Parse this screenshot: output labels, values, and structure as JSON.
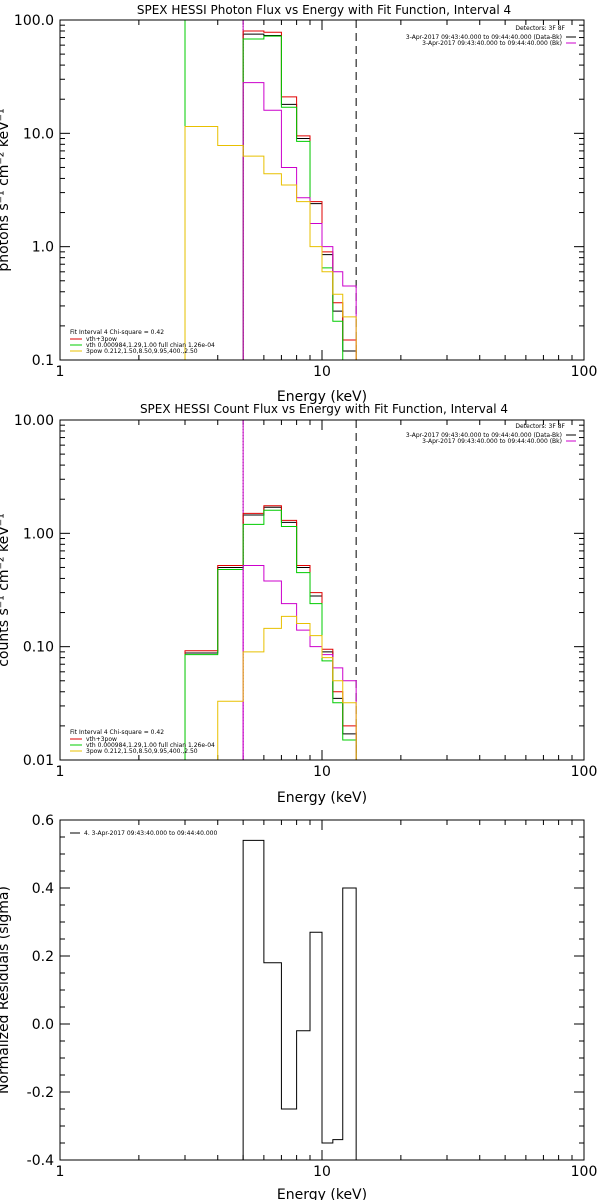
{
  "chart_data": [
    {
      "type": "line",
      "title": "SPEX HESSI Photon Flux vs Energy with Fit Function, Interval 4",
      "xlabel": "Energy (keV)",
      "ylabel": "photons s⁻¹ cm⁻² keV⁻¹",
      "xscale": "log",
      "yscale": "log",
      "xlim": [
        1,
        100
      ],
      "ylim": [
        0.1,
        100
      ],
      "x_ticks": [
        1,
        10,
        100
      ],
      "x_tick_labels": [
        "1",
        "10",
        "100"
      ],
      "y_ticks": [
        0.1,
        1,
        10,
        100
      ],
      "y_tick_labels": [
        "0.1",
        "1.0",
        "10.0",
        "100.0"
      ],
      "info_lines": [
        "Detectors: 3F 8F",
        "3-Apr-2017 09:43:40.000 to 09:44:40.000 (Data-Bk)",
        "3-Apr-2017 09:43:40.000 to 09:44:40.000 (Bk)"
      ],
      "fit_legend_title": "Fit Interval 4   Chi-square = 0.42",
      "fit_legend": [
        {
          "label": "vth+3pow",
          "color": "#e00000"
        },
        {
          "label": "vth 0.000984,1.29,1.00   full chian 1.26e-04",
          "color": "#00cc00"
        },
        {
          "label": "3pow 0.212,1.50,8.50,9.95,400.,2.50",
          "color": "#e8c000"
        }
      ],
      "vlines": [
        {
          "x": 3.0,
          "color": "#00cc00",
          "style": "solid"
        },
        {
          "x": 5.0,
          "color": "#000000",
          "style": "dotted"
        },
        {
          "x": 5.0,
          "color": "#cc00cc",
          "style": "solid"
        },
        {
          "x": 13.5,
          "color": "#000000",
          "style": "dashed"
        }
      ],
      "edges": [
        3.0,
        4.0,
        5.0,
        6.0,
        7.0,
        8.0,
        9.0,
        10.0,
        11.0,
        12.0,
        13.5
      ],
      "series": [
        {
          "color": "#000000",
          "values": [
            null,
            null,
            75,
            73,
            18,
            9.0,
            2.4,
            0.85,
            0.27,
            0.12
          ]
        },
        {
          "color": "#e00000",
          "values": [
            null,
            null,
            80,
            78,
            21,
            9.5,
            2.5,
            0.9,
            0.32,
            0.15
          ]
        },
        {
          "color": "#00cc00",
          "values": [
            null,
            null,
            68,
            72,
            17,
            8.5,
            1.6,
            0.65,
            0.22,
            0.1
          ]
        },
        {
          "color": "#cc00cc",
          "values": [
            null,
            null,
            28,
            16,
            5.0,
            2.7,
            1.6,
            1.0,
            0.6,
            0.45
          ]
        },
        {
          "color": "#e8c000",
          "values": [
            11.5,
            7.8,
            6.3,
            4.4,
            3.5,
            2.5,
            1.0,
            0.6,
            0.38,
            0.24
          ]
        }
      ]
    },
    {
      "type": "line",
      "title": "SPEX HESSI Count Flux vs Energy with Fit Function, Interval 4",
      "xlabel": "Energy (keV)",
      "ylabel": "counts s⁻¹ cm⁻² keV⁻¹",
      "xscale": "log",
      "yscale": "log",
      "xlim": [
        1,
        100
      ],
      "ylim": [
        0.01,
        10
      ],
      "x_ticks": [
        1,
        10,
        100
      ],
      "x_tick_labels": [
        "1",
        "10",
        "100"
      ],
      "y_ticks": [
        0.01,
        0.1,
        1,
        10
      ],
      "y_tick_labels": [
        "0.01",
        "0.10",
        "1.00",
        "10.00"
      ],
      "info_lines": [
        "Detectors: 3F 8F",
        "3-Apr-2017 09:43:40.000 to 09:44:40.000 (Data-Bk)",
        "3-Apr-2017 09:43:40.000 to 09:44:40.000 (Bk)"
      ],
      "fit_legend_title": "Fit Interval 4   Chi-square = 0.42",
      "fit_legend": [
        {
          "label": "vth+3pow",
          "color": "#e00000"
        },
        {
          "label": "vth 0.000984,1.29,1.00   full chian 1.26e-04",
          "color": "#00cc00"
        },
        {
          "label": "3pow 0.212,1.50,8.50,9.95,400.,2.50",
          "color": "#e8c000"
        }
      ],
      "vlines": [
        {
          "x": 5.0,
          "color": "#000000",
          "style": "dotted"
        },
        {
          "x": 5.0,
          "color": "#cc00cc",
          "style": "solid"
        },
        {
          "x": 13.5,
          "color": "#000000",
          "style": "dashed"
        }
      ],
      "edges": [
        3.0,
        4.0,
        5.0,
        6.0,
        7.0,
        8.0,
        9.0,
        10.0,
        11.0,
        12.0,
        13.5
      ],
      "series": [
        {
          "color": "#000000",
          "values": [
            0.088,
            0.5,
            1.45,
            1.7,
            1.25,
            0.5,
            0.28,
            0.09,
            0.035,
            0.017
          ]
        },
        {
          "color": "#e00000",
          "values": [
            0.092,
            0.52,
            1.5,
            1.75,
            1.3,
            0.52,
            0.3,
            0.095,
            0.04,
            0.02
          ]
        },
        {
          "color": "#00cc00",
          "values": [
            0.085,
            0.48,
            1.2,
            1.6,
            1.15,
            0.45,
            0.24,
            0.075,
            0.032,
            0.015
          ]
        },
        {
          "color": "#cc00cc",
          "values": [
            null,
            null,
            0.52,
            0.38,
            0.24,
            0.14,
            0.1,
            0.085,
            0.065,
            0.05
          ]
        },
        {
          "color": "#e8c000",
          "values": [
            null,
            0.033,
            0.09,
            0.145,
            0.185,
            0.16,
            0.125,
            0.08,
            0.05,
            0.032
          ]
        }
      ]
    },
    {
      "type": "line",
      "title": "",
      "xlabel": "Energy (keV)",
      "ylabel": "Normalized Residuals (sigma)",
      "xscale": "log",
      "yscale": "linear",
      "xlim": [
        1,
        100
      ],
      "ylim": [
        -0.4,
        0.6
      ],
      "x_ticks": [
        1,
        10,
        100
      ],
      "x_tick_labels": [
        "1",
        "10",
        "100"
      ],
      "y_ticks": [
        -0.4,
        -0.2,
        0.0,
        0.2,
        0.4,
        0.6
      ],
      "y_tick_labels": [
        "-0.4",
        "-0.2",
        "0.0",
        "0.2",
        "0.4",
        "0.6"
      ],
      "legend": "4. 3-Apr-2017 09:43:40.000 to 09:44:40.000",
      "edges": [
        5.0,
        6.0,
        7.0,
        8.0,
        9.0,
        10.0,
        11.0,
        12.0,
        13.5
      ],
      "series": [
        {
          "color": "#000000",
          "values": [
            0.54,
            0.18,
            -0.25,
            -0.02,
            0.27,
            -0.35,
            -0.34,
            0.4
          ]
        }
      ]
    }
  ]
}
